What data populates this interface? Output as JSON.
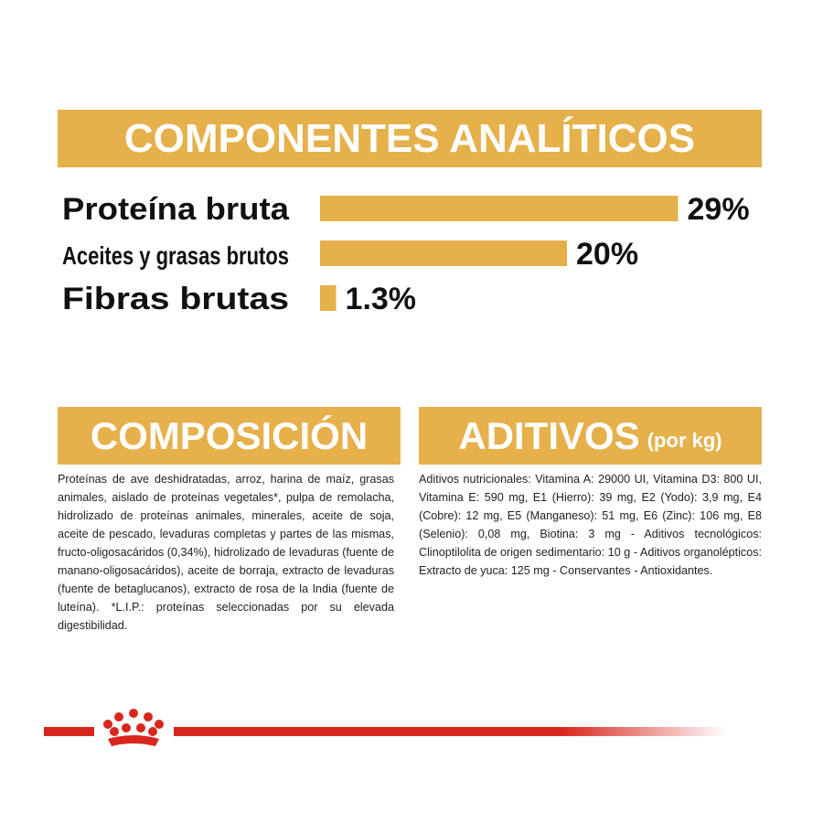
{
  "chart_data": {
    "type": "bar",
    "title": "COMPONENTES ANALÍTICOS",
    "categories": [
      "Proteína bruta",
      "Aceites y grasas brutos",
      "Fibras brutas"
    ],
    "values": [
      29,
      20,
      1.3
    ],
    "value_labels": [
      "29%",
      "20%",
      "1.3%"
    ],
    "color": "#e6b04a"
  },
  "composition": {
    "title": "COMPOSICIÓN",
    "text": "Proteínas de ave deshidratadas, arroz, harina de maíz, grasas animales, aislado de proteínas vegetales*, pulpa de remolacha, hidrolizado de proteínas animales, minerales, aceite de soja, aceite de pescado, levaduras completas y partes de las mismas, fructo-oligosacáridos (0,34%), hidrolizado de levaduras (fuente de manano-oligosacáridos), aceite de borraja, extracto de levaduras (fuente de betaglucanos), extracto de rosa de la India (fuente de luteína). *L.I.P.: proteínas seleccionadas por su elevada digestibilidad."
  },
  "additives": {
    "title": "ADITIVOS",
    "subtitle": "(por kg)",
    "text": "Aditivos nutricionales: Vitamina A: 29000 UI, Vitamina D3: 800 UI, Vitamina E: 590 mg, E1 (Hierro): 39 mg, E2 (Yodo): 3,9 mg, E4 (Cobre): 12 mg, E5 (Manganeso): 51 mg, E6 (Zinc): 106 mg, E8 (Selenio): 0,08 mg, Biotina: 3 mg - Aditivos tecnológicos: Clinoptilolita de origen sedimentario: 10 g - Aditivos organolépticos: Extracto de yuca: 125 mg - Conservantes - Antioxidantes."
  }
}
